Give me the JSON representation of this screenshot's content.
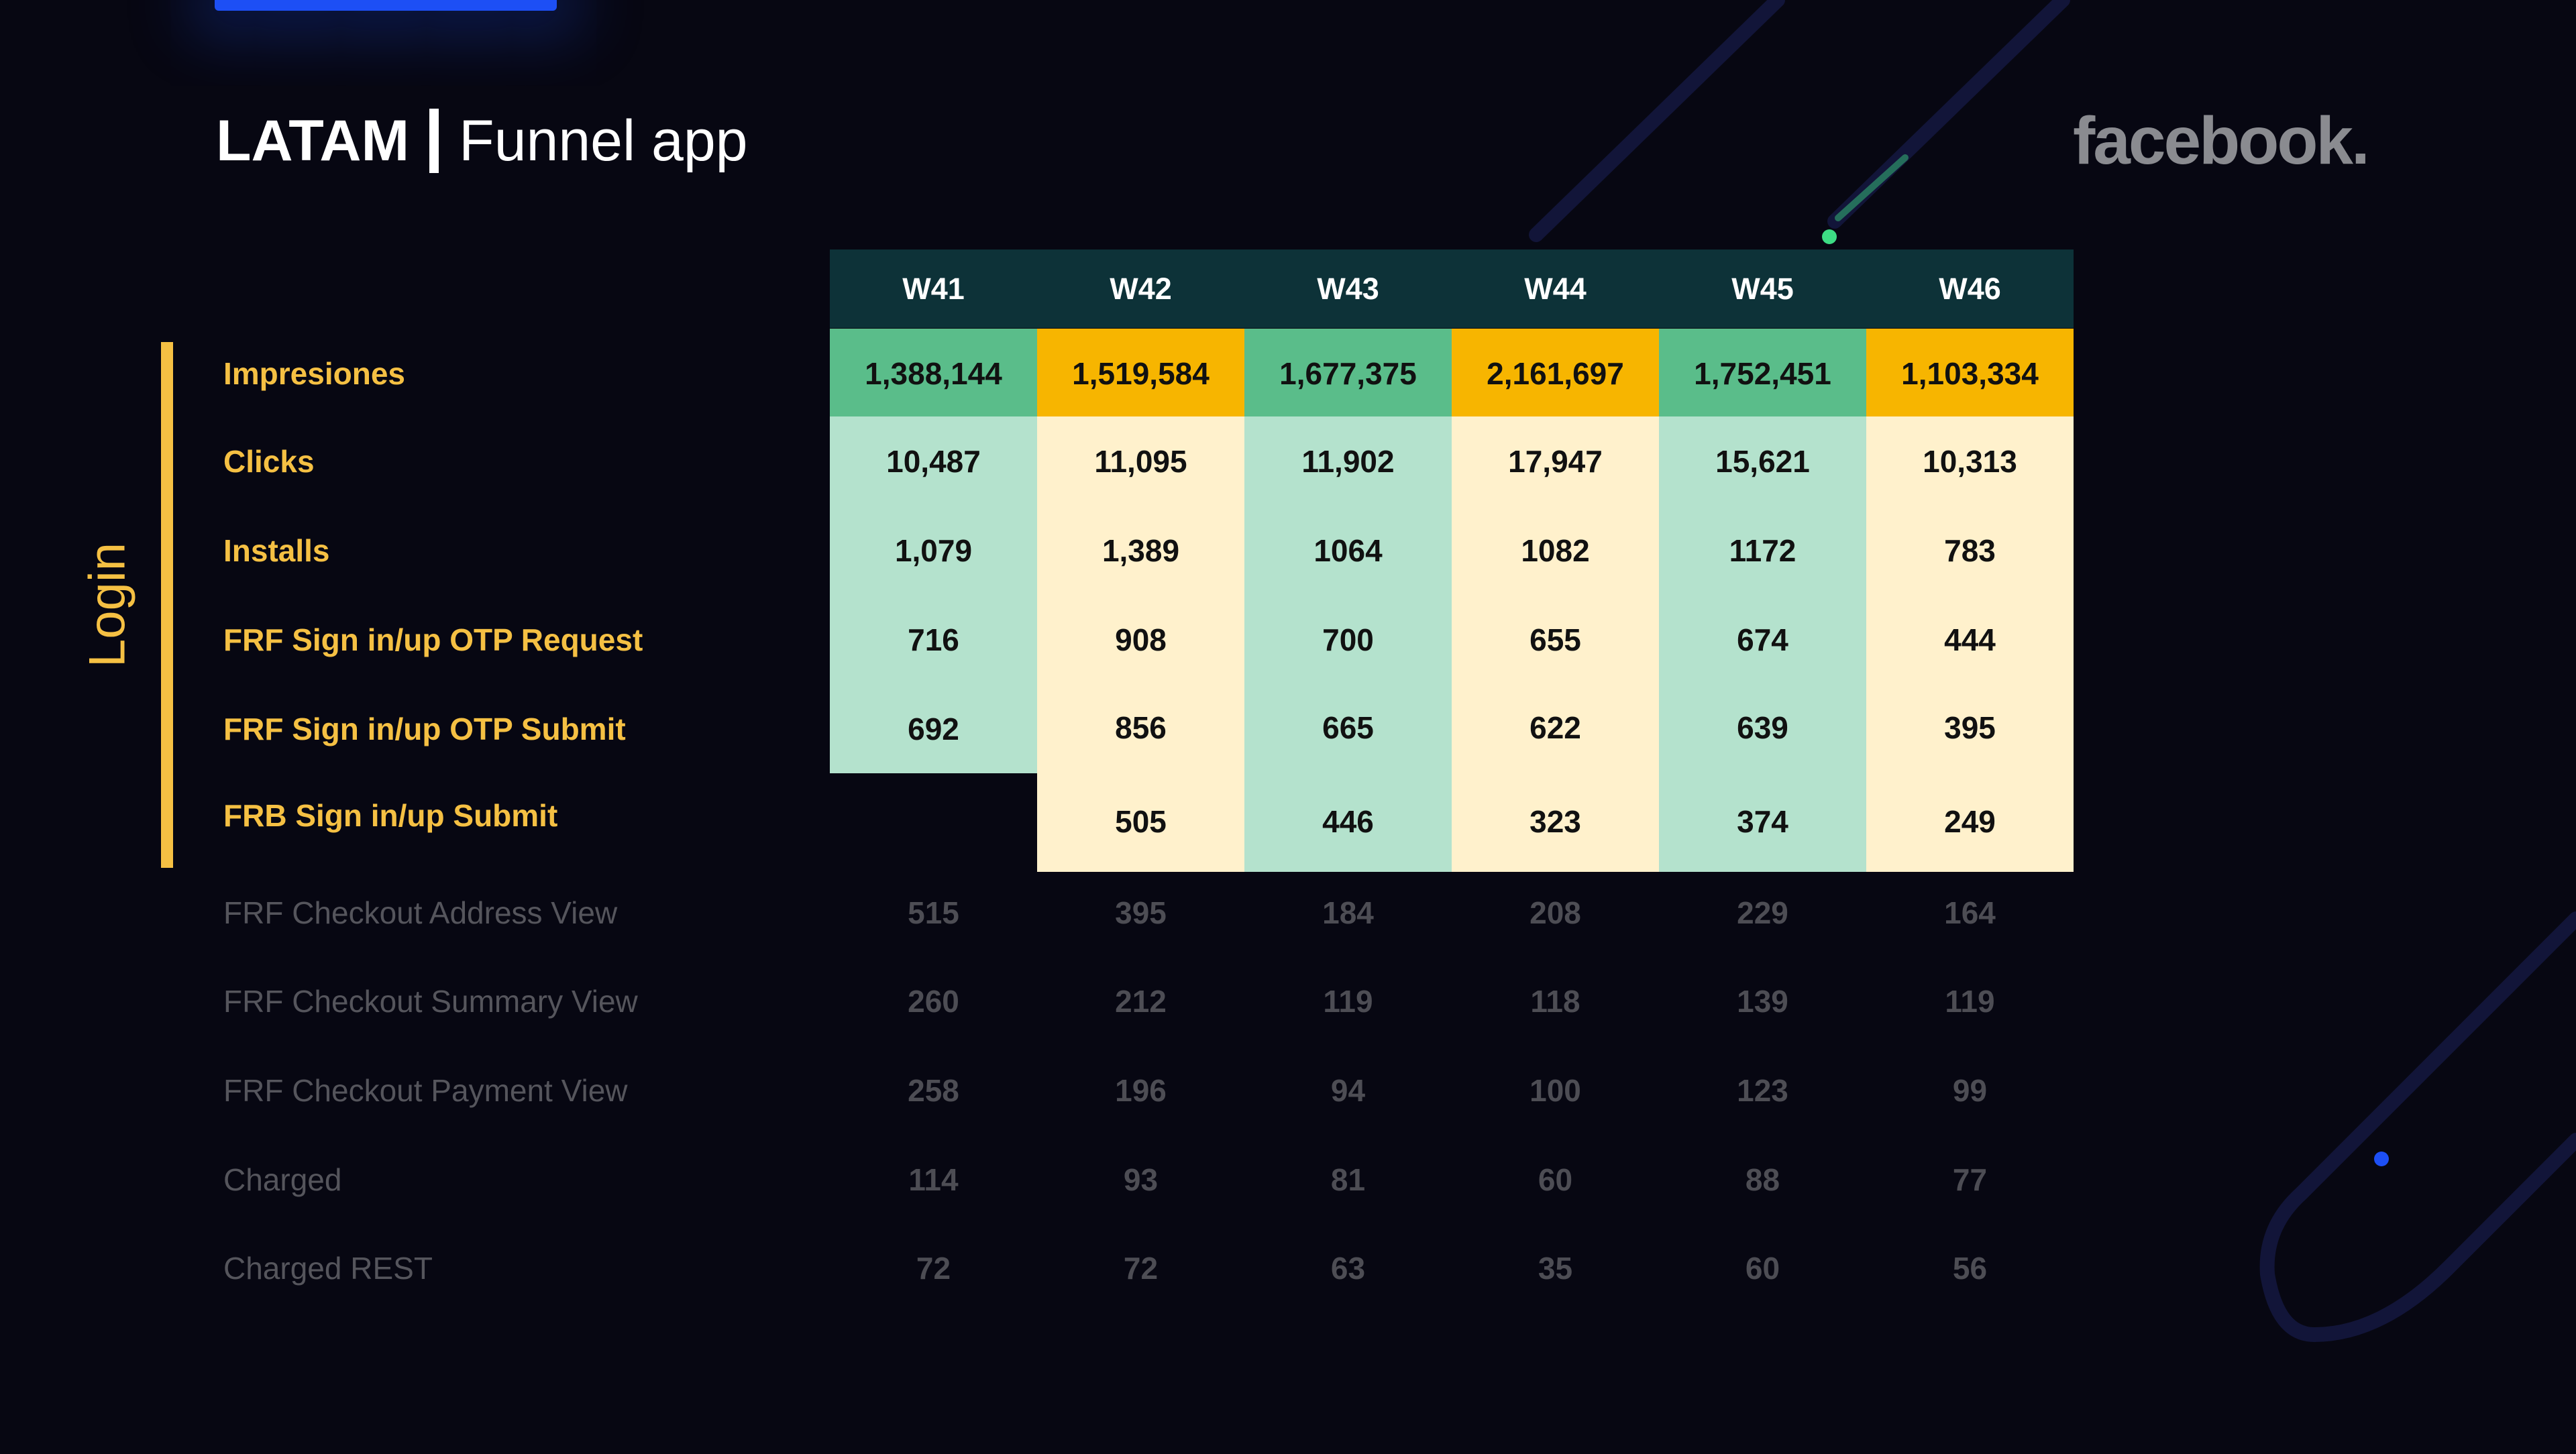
{
  "header": {
    "title_bold": "LATAM",
    "title_light": "Funnel app",
    "brand_logo": "facebook."
  },
  "section": {
    "label": "Login"
  },
  "table": {
    "weeks": [
      "W41",
      "W42",
      "W43",
      "W44",
      "W45",
      "W46"
    ],
    "rows": [
      {
        "label": "Impresiones",
        "values": [
          "1,388,144",
          "1,519,584",
          "1,677,375",
          "2,161,697",
          "1,752,451",
          "1,103,334"
        ]
      },
      {
        "label": "Clicks",
        "values": [
          "10,487",
          "11,095",
          "11,902",
          "17,947",
          "15,621",
          "10,313"
        ]
      },
      {
        "label": "Installs",
        "values": [
          "1,079",
          "1,389",
          "1064",
          "1082",
          "1172",
          "783"
        ]
      },
      {
        "label": "FRF Sign in/up OTP Request",
        "values": [
          "716",
          "908",
          "700",
          "655",
          "674",
          "444"
        ]
      },
      {
        "label": "FRF Sign in/up OTP Submit",
        "values": [
          "692",
          "856",
          "665",
          "622",
          "639",
          "395"
        ]
      },
      {
        "label": "FRB Sign in/up Submit",
        "values": [
          "",
          "505",
          "446",
          "323",
          "374",
          "249"
        ]
      },
      {
        "label": "FRF Checkout Address View",
        "values": [
          "515",
          "395",
          "184",
          "208",
          "229",
          "164"
        ]
      },
      {
        "label": "FRF Checkout Summary View",
        "values": [
          "260",
          "212",
          "119",
          "118",
          "139",
          "119"
        ]
      },
      {
        "label": "FRF Checkout Payment View",
        "values": [
          "258",
          "196",
          "94",
          "100",
          "123",
          "99"
        ]
      },
      {
        "label": "Charged",
        "values": [
          "114",
          "93",
          "81",
          "60",
          "88",
          "77"
        ]
      },
      {
        "label": "Charged REST",
        "values": [
          "72",
          "72",
          "63",
          "35",
          "60",
          "56"
        ]
      }
    ]
  },
  "colors": {
    "background": "#070712",
    "accent_yellow": "#f5c043",
    "header_teal": "#0d3238",
    "impressions_green": "#5abd8a",
    "impressions_yellow": "#f7b500",
    "mint": "#b4e2cd",
    "cream": "#fff1cc",
    "deco_line": "#121539",
    "deco_blue": "#1d4ff5",
    "deco_green": "#3ddc84"
  }
}
